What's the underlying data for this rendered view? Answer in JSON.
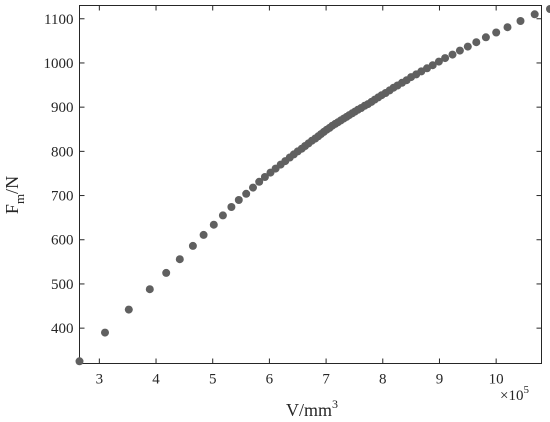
{
  "chart_data": {
    "type": "scatter",
    "title": "",
    "xlabel": "V/mm",
    "xlabel_superscript": "3",
    "ylabel": "F",
    "ylabel_subscript": "m",
    "ylabel_suffix": "/N",
    "x_multiplier": "×10",
    "x_multiplier_exponent": "5",
    "xlim": [
      2.65,
      10.8
    ],
    "ylim": [
      320,
      1130
    ],
    "x_ticks": [
      3,
      4,
      5,
      6,
      7,
      8,
      9,
      10
    ],
    "y_ticks": [
      400,
      500,
      600,
      700,
      800,
      900,
      1000,
      1100
    ],
    "x_tick_labels": [
      "3",
      "4",
      "5",
      "6",
      "7",
      "8",
      "9",
      "10"
    ],
    "y_tick_labels": [
      "400",
      "500",
      "600",
      "700",
      "800",
      "900",
      "1000",
      "1100"
    ],
    "grid": false,
    "marker_color": "#606060",
    "series": [
      {
        "points": [
          [
            2.65,
            325
          ],
          [
            3.1,
            390
          ],
          [
            3.52,
            442
          ],
          [
            3.89,
            488
          ],
          [
            4.18,
            525
          ],
          [
            4.42,
            556
          ],
          [
            4.65,
            586
          ],
          [
            4.84,
            611
          ],
          [
            5.02,
            634
          ],
          [
            5.18,
            655
          ],
          [
            5.33,
            674
          ],
          [
            5.46,
            690
          ],
          [
            5.59,
            704
          ],
          [
            5.71,
            718
          ],
          [
            5.82,
            731
          ],
          [
            5.92,
            742
          ],
          [
            6.02,
            752
          ],
          [
            6.11,
            761
          ],
          [
            6.2,
            770
          ],
          [
            6.28,
            778
          ],
          [
            6.36,
            786
          ],
          [
            6.43,
            793
          ],
          [
            6.5,
            800
          ],
          [
            6.57,
            806
          ],
          [
            6.63,
            812
          ],
          [
            6.69,
            818
          ],
          [
            6.75,
            824
          ],
          [
            6.81,
            829
          ],
          [
            6.86,
            834
          ],
          [
            6.91,
            839
          ],
          [
            6.96,
            844
          ],
          [
            7.01,
            849
          ],
          [
            7.06,
            853
          ],
          [
            7.11,
            858
          ],
          [
            7.16,
            862
          ],
          [
            7.21,
            866
          ],
          [
            7.26,
            870
          ],
          [
            7.31,
            874
          ],
          [
            7.36,
            878
          ],
          [
            7.41,
            882
          ],
          [
            7.46,
            886
          ],
          [
            7.51,
            890
          ],
          [
            7.56,
            894
          ],
          [
            7.62,
            898
          ],
          [
            7.68,
            903
          ],
          [
            7.74,
            907
          ],
          [
            7.8,
            912
          ],
          [
            7.86,
            917
          ],
          [
            7.92,
            922
          ],
          [
            7.98,
            927
          ],
          [
            8.05,
            932
          ],
          [
            8.12,
            938
          ],
          [
            8.19,
            944
          ],
          [
            8.26,
            949
          ],
          [
            8.34,
            955
          ],
          [
            8.42,
            961
          ],
          [
            8.5,
            968
          ],
          [
            8.59,
            974
          ],
          [
            8.68,
            981
          ],
          [
            8.78,
            988
          ],
          [
            8.88,
            995
          ],
          [
            8.99,
            1003
          ],
          [
            9.1,
            1011
          ],
          [
            9.23,
            1019
          ],
          [
            9.36,
            1028
          ],
          [
            9.5,
            1037
          ],
          [
            9.65,
            1047
          ],
          [
            9.82,
            1058
          ],
          [
            10.0,
            1069
          ],
          [
            10.2,
            1081
          ],
          [
            10.43,
            1095
          ],
          [
            10.68,
            1110
          ],
          [
            10.95,
            1122
          ]
        ]
      }
    ]
  }
}
